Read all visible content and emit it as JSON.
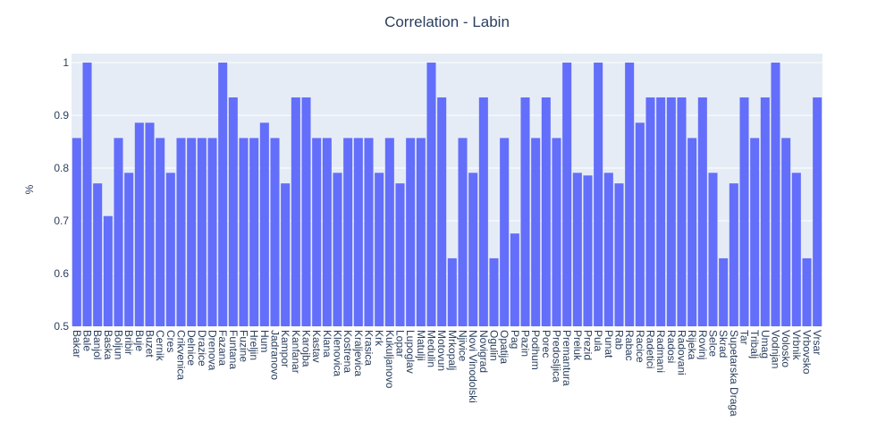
{
  "chart_data": {
    "type": "bar",
    "title": "Correlation - Labin",
    "y_label": "%",
    "categories": [
      "Bakar",
      "Bale",
      "Banjol",
      "Baska",
      "Boljun",
      "Bribir",
      "Buje",
      "Buzet",
      "Cernik",
      "Cres",
      "Crikvenica",
      "Delnice",
      "Drazice",
      "Drenova",
      "Fazana",
      "Funtana",
      "Fuzine",
      "Hreljin",
      "Hum",
      "Jadranovo",
      "Kampor",
      "Kanfanar",
      "Karojba",
      "Kastav",
      "Klana",
      "Klenovica",
      "Kostrena",
      "Kraljevica",
      "Krasica",
      "Krk",
      "Kukuljanovo",
      "Lopar",
      "Lupoglav",
      "Matulji",
      "Medulin",
      "Motovun",
      "Mrkopalj",
      "Njivice",
      "Novi Vinodolski",
      "Novigrad",
      "Ogulin",
      "Opatija",
      "Pag",
      "Pazin",
      "Podhum",
      "Porec",
      "Predosljica",
      "Premantura",
      "Preluk",
      "Prezid",
      "Pula",
      "Punat",
      "Rab",
      "Rabac",
      "Racice",
      "Radetici",
      "Radmani",
      "Radosi",
      "Radovani",
      "Rijeka",
      "Rovinj",
      "Selce",
      "Skrad",
      "Supetarska Draga",
      "Tar",
      "Tribalj",
      "Umag",
      "Vodnjan",
      "Volosko",
      "Vrbnik",
      "Vrbovsko",
      "Vrsar"
    ],
    "values": [
      0.857,
      1,
      0.771,
      0.709,
      0.857,
      0.791,
      0.886,
      0.886,
      0.857,
      0.791,
      0.857,
      0.857,
      0.857,
      0.857,
      1,
      0.934,
      0.857,
      0.857,
      0.886,
      0.857,
      0.771,
      0.934,
      0.934,
      0.857,
      0.857,
      0.791,
      0.857,
      0.857,
      0.857,
      0.791,
      0.857,
      0.771,
      0.857,
      0.857,
      1,
      0.934,
      0.629,
      0.857,
      0.791,
      0.934,
      0.629,
      0.857,
      0.676,
      0.934,
      0.857,
      0.934,
      0.857,
      1,
      0.791,
      0.786,
      1,
      0.791,
      0.771,
      1,
      0.886,
      0.934,
      0.934,
      0.934,
      0.934,
      0.857,
      0.934,
      0.791,
      0.629,
      0.771,
      0.934,
      0.857,
      0.934,
      1,
      0.857,
      0.791,
      0.629,
      0.934
    ],
    "color": "#636efa",
    "ylim": [
      0.5,
      1.017
    ],
    "yticks": [
      0.5,
      0.6,
      0.7,
      0.8,
      0.9,
      1
    ],
    "grid": true
  }
}
